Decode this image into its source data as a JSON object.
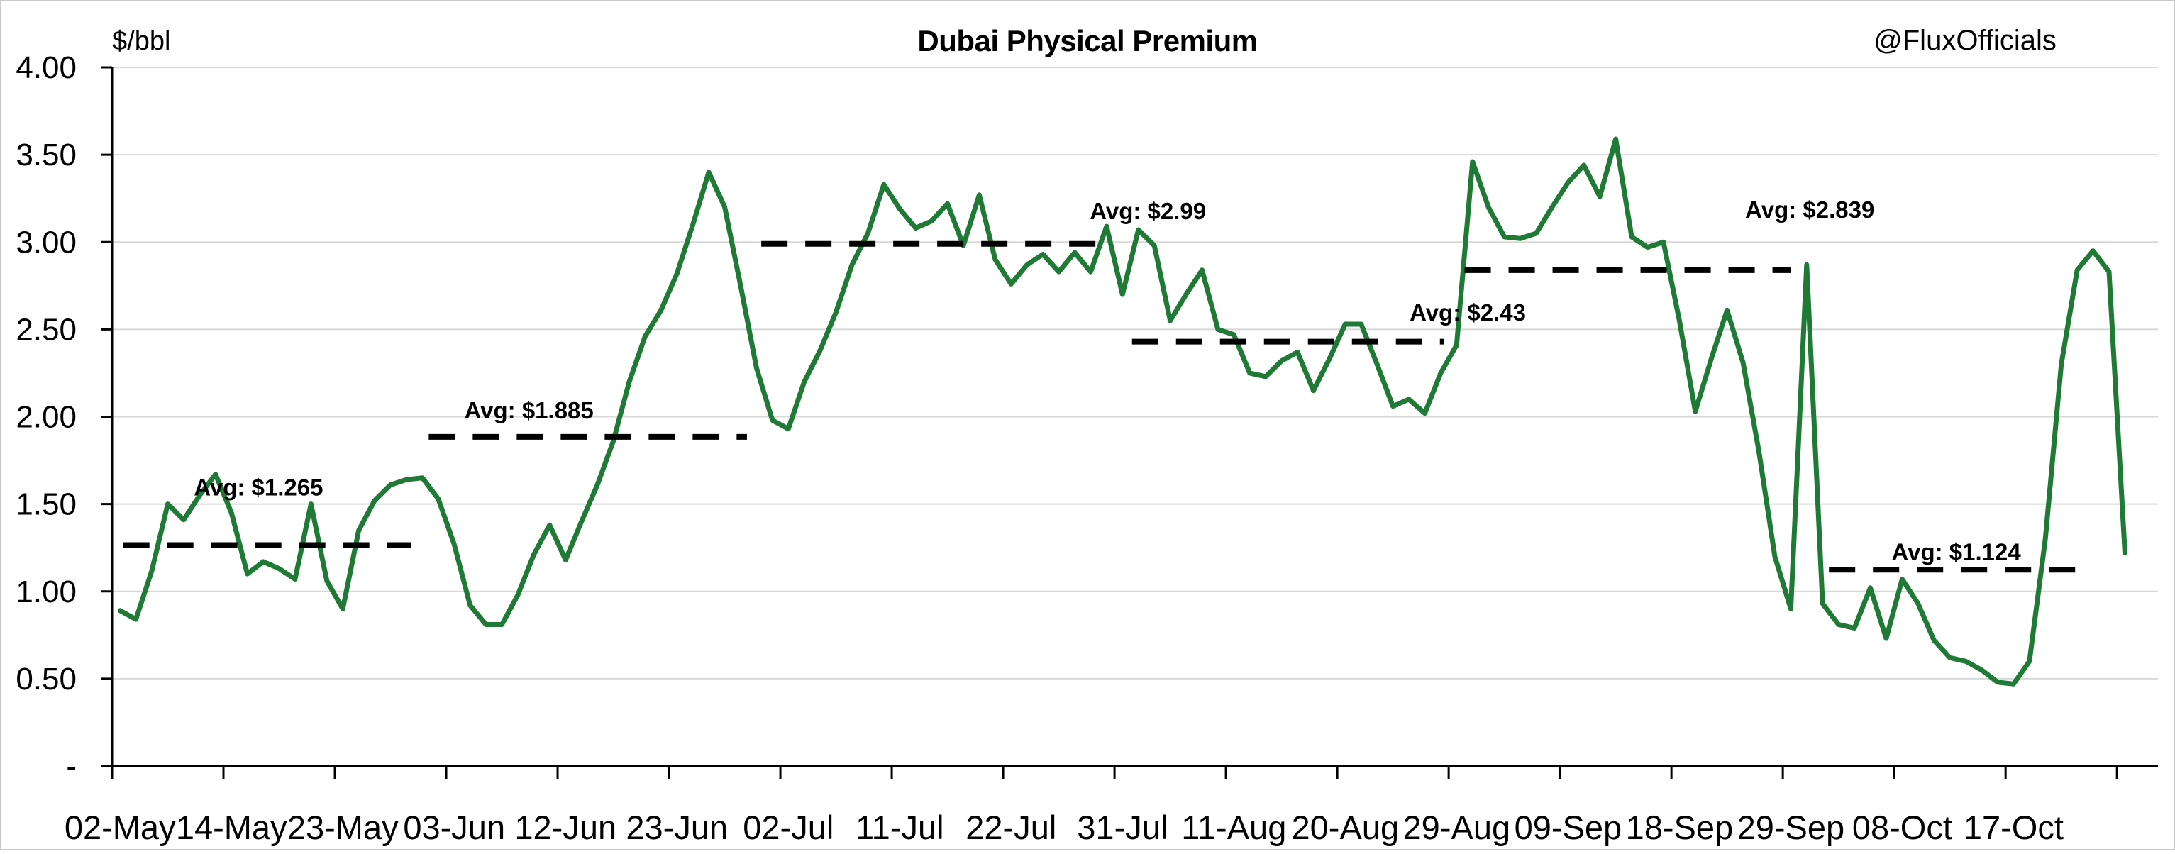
{
  "header": {
    "title": "Dubai Physical Premium",
    "watermark": "@FluxOfficials",
    "units_label": "$/bbl"
  },
  "chart_data": {
    "type": "line",
    "title": "Dubai Physical Premium",
    "xlabel": "",
    "ylabel": "$/bbl",
    "ylim": [
      0,
      4
    ],
    "ytick_step": 0.5,
    "ytick_labels": [
      "4.00",
      "3.50",
      "3.00",
      "2.50",
      "2.00",
      "1.50",
      "1.00",
      "0.50",
      "-"
    ],
    "grid": true,
    "legend_position": "none",
    "line_color": "#1e7a34",
    "avg_line_color": "#000000",
    "grid_color": "#d8d8d8",
    "x_tick_labels": [
      "02-May",
      "14-May",
      "23-May",
      "03-Jun",
      "12-Jun",
      "23-Jun",
      "02-Jul",
      "11-Jul",
      "22-Jul",
      "31-Jul",
      "11-Aug",
      "20-Aug",
      "29-Aug",
      "09-Sep",
      "18-Sep",
      "29-Sep",
      "08-Oct",
      "17-Oct"
    ],
    "points_per_tick": 7,
    "values": [
      0.89,
      0.84,
      1.12,
      1.5,
      1.41,
      1.55,
      1.67,
      1.45,
      1.1,
      1.17,
      1.13,
      1.07,
      1.5,
      1.06,
      0.9,
      1.35,
      1.52,
      1.61,
      1.64,
      1.65,
      1.53,
      1.27,
      0.92,
      0.81,
      0.81,
      0.98,
      1.21,
      1.38,
      1.18,
      1.4,
      1.61,
      1.86,
      2.2,
      2.46,
      2.61,
      2.82,
      3.1,
      3.4,
      3.2,
      2.75,
      2.28,
      1.98,
      1.93,
      2.2,
      2.38,
      2.6,
      2.87,
      3.05,
      3.33,
      3.19,
      3.08,
      3.12,
      3.22,
      2.98,
      3.27,
      2.9,
      2.76,
      2.87,
      2.93,
      2.83,
      2.94,
      2.83,
      3.09,
      2.7,
      3.07,
      2.98,
      2.55,
      2.7,
      2.84,
      2.5,
      2.47,
      2.25,
      2.23,
      2.32,
      2.37,
      2.15,
      2.33,
      2.53,
      2.53,
      2.3,
      2.06,
      2.1,
      2.02,
      2.25,
      2.41,
      3.46,
      3.2,
      3.03,
      3.02,
      3.05,
      3.2,
      3.34,
      3.44,
      3.26,
      3.59,
      3.03,
      2.97,
      3.0,
      2.55,
      2.03,
      2.33,
      2.61,
      2.31,
      1.8,
      1.2,
      0.9,
      2.87,
      0.93,
      0.81,
      0.79,
      1.02,
      0.73,
      1.07,
      0.93,
      0.72,
      0.62,
      0.6,
      0.55,
      0.48,
      0.47,
      0.6,
      1.3,
      2.3,
      2.84,
      2.95,
      2.83,
      1.22
    ],
    "averages": [
      {
        "label": "Avg: $1.265",
        "value": 1.265,
        "start_index": 0.2,
        "end_index": 18.3,
        "label_index": 8.7,
        "label_value": 1.55
      },
      {
        "label": "Avg: $1.885",
        "value": 1.885,
        "start_index": 19.4,
        "end_index": 39.4,
        "label_index": 25.7,
        "label_value": 1.99
      },
      {
        "label": "Avg: $2.99",
        "value": 2.99,
        "start_index": 40.3,
        "end_index": 61.5,
        "label_index": 64.6,
        "label_value": 3.13
      },
      {
        "label": "Avg: $2.43",
        "value": 2.43,
        "start_index": 63.6,
        "end_index": 83.2,
        "label_index": 84.7,
        "label_value": 2.55
      },
      {
        "label": "Avg: $2.839",
        "value": 2.839,
        "start_index": 84.5,
        "end_index": 105.0,
        "label_index": 106.2,
        "label_value": 3.14
      },
      {
        "label": "Avg: $1.124",
        "value": 1.124,
        "start_index": 107.4,
        "end_index": 123.1,
        "label_index": 115.4,
        "label_value": 1.18
      }
    ]
  }
}
